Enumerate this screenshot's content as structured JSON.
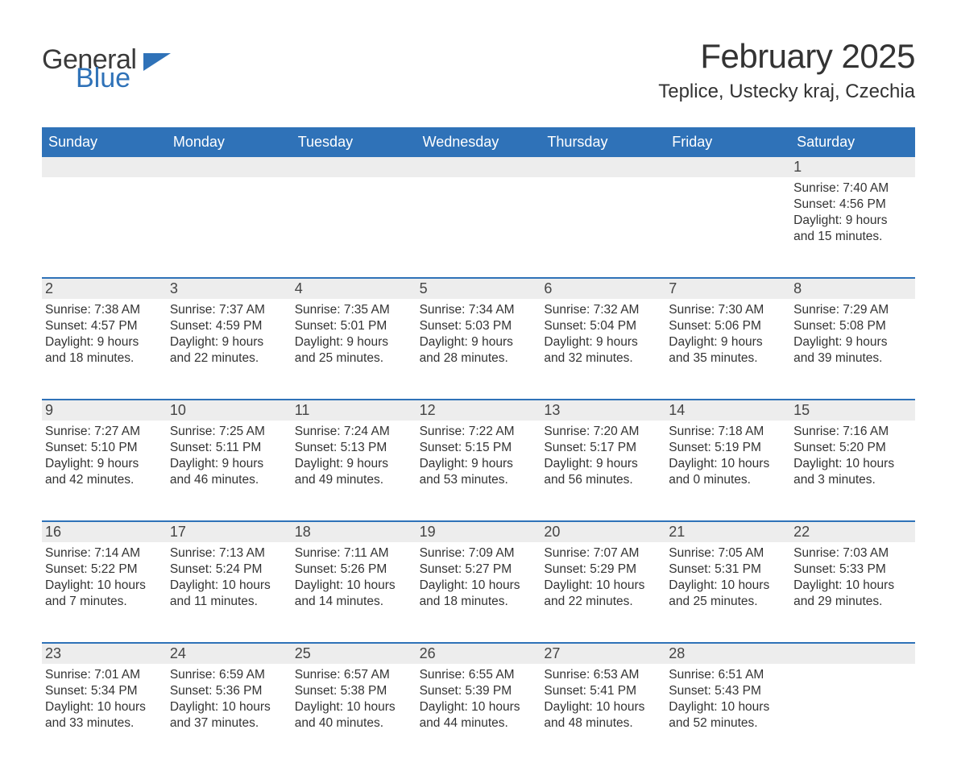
{
  "brand": {
    "word1": "General",
    "word2": "Blue",
    "mark_color": "#2f72b8"
  },
  "title": {
    "month_year": "February 2025",
    "location": "Teplice, Ustecky kraj, Czechia"
  },
  "colors": {
    "header_bg": "#2f72b8",
    "header_text": "#ffffff",
    "row_divider": "#2f72b8",
    "daynum_bg": "#ededed",
    "text": "#333333",
    "background": "#ffffff"
  },
  "typography": {
    "title_fontsize_pt": 32,
    "location_fontsize_pt": 18,
    "dayhead_fontsize_pt": 14,
    "body_fontsize_pt": 12,
    "font_family": "Arial"
  },
  "layout": {
    "columns": 7,
    "week_rows": 5,
    "first_day_column_index": 6
  },
  "day_headers": [
    "Sunday",
    "Monday",
    "Tuesday",
    "Wednesday",
    "Thursday",
    "Friday",
    "Saturday"
  ],
  "weeks": [
    [
      null,
      null,
      null,
      null,
      null,
      null,
      {
        "n": "1",
        "sunrise": "Sunrise: 7:40 AM",
        "sunset": "Sunset: 4:56 PM",
        "day1": "Daylight: 9 hours",
        "day2": "and 15 minutes."
      }
    ],
    [
      {
        "n": "2",
        "sunrise": "Sunrise: 7:38 AM",
        "sunset": "Sunset: 4:57 PM",
        "day1": "Daylight: 9 hours",
        "day2": "and 18 minutes."
      },
      {
        "n": "3",
        "sunrise": "Sunrise: 7:37 AM",
        "sunset": "Sunset: 4:59 PM",
        "day1": "Daylight: 9 hours",
        "day2": "and 22 minutes."
      },
      {
        "n": "4",
        "sunrise": "Sunrise: 7:35 AM",
        "sunset": "Sunset: 5:01 PM",
        "day1": "Daylight: 9 hours",
        "day2": "and 25 minutes."
      },
      {
        "n": "5",
        "sunrise": "Sunrise: 7:34 AM",
        "sunset": "Sunset: 5:03 PM",
        "day1": "Daylight: 9 hours",
        "day2": "and 28 minutes."
      },
      {
        "n": "6",
        "sunrise": "Sunrise: 7:32 AM",
        "sunset": "Sunset: 5:04 PM",
        "day1": "Daylight: 9 hours",
        "day2": "and 32 minutes."
      },
      {
        "n": "7",
        "sunrise": "Sunrise: 7:30 AM",
        "sunset": "Sunset: 5:06 PM",
        "day1": "Daylight: 9 hours",
        "day2": "and 35 minutes."
      },
      {
        "n": "8",
        "sunrise": "Sunrise: 7:29 AM",
        "sunset": "Sunset: 5:08 PM",
        "day1": "Daylight: 9 hours",
        "day2": "and 39 minutes."
      }
    ],
    [
      {
        "n": "9",
        "sunrise": "Sunrise: 7:27 AM",
        "sunset": "Sunset: 5:10 PM",
        "day1": "Daylight: 9 hours",
        "day2": "and 42 minutes."
      },
      {
        "n": "10",
        "sunrise": "Sunrise: 7:25 AM",
        "sunset": "Sunset: 5:11 PM",
        "day1": "Daylight: 9 hours",
        "day2": "and 46 minutes."
      },
      {
        "n": "11",
        "sunrise": "Sunrise: 7:24 AM",
        "sunset": "Sunset: 5:13 PM",
        "day1": "Daylight: 9 hours",
        "day2": "and 49 minutes."
      },
      {
        "n": "12",
        "sunrise": "Sunrise: 7:22 AM",
        "sunset": "Sunset: 5:15 PM",
        "day1": "Daylight: 9 hours",
        "day2": "and 53 minutes."
      },
      {
        "n": "13",
        "sunrise": "Sunrise: 7:20 AM",
        "sunset": "Sunset: 5:17 PM",
        "day1": "Daylight: 9 hours",
        "day2": "and 56 minutes."
      },
      {
        "n": "14",
        "sunrise": "Sunrise: 7:18 AM",
        "sunset": "Sunset: 5:19 PM",
        "day1": "Daylight: 10 hours",
        "day2": "and 0 minutes."
      },
      {
        "n": "15",
        "sunrise": "Sunrise: 7:16 AM",
        "sunset": "Sunset: 5:20 PM",
        "day1": "Daylight: 10 hours",
        "day2": "and 3 minutes."
      }
    ],
    [
      {
        "n": "16",
        "sunrise": "Sunrise: 7:14 AM",
        "sunset": "Sunset: 5:22 PM",
        "day1": "Daylight: 10 hours",
        "day2": "and 7 minutes."
      },
      {
        "n": "17",
        "sunrise": "Sunrise: 7:13 AM",
        "sunset": "Sunset: 5:24 PM",
        "day1": "Daylight: 10 hours",
        "day2": "and 11 minutes."
      },
      {
        "n": "18",
        "sunrise": "Sunrise: 7:11 AM",
        "sunset": "Sunset: 5:26 PM",
        "day1": "Daylight: 10 hours",
        "day2": "and 14 minutes."
      },
      {
        "n": "19",
        "sunrise": "Sunrise: 7:09 AM",
        "sunset": "Sunset: 5:27 PM",
        "day1": "Daylight: 10 hours",
        "day2": "and 18 minutes."
      },
      {
        "n": "20",
        "sunrise": "Sunrise: 7:07 AM",
        "sunset": "Sunset: 5:29 PM",
        "day1": "Daylight: 10 hours",
        "day2": "and 22 minutes."
      },
      {
        "n": "21",
        "sunrise": "Sunrise: 7:05 AM",
        "sunset": "Sunset: 5:31 PM",
        "day1": "Daylight: 10 hours",
        "day2": "and 25 minutes."
      },
      {
        "n": "22",
        "sunrise": "Sunrise: 7:03 AM",
        "sunset": "Sunset: 5:33 PM",
        "day1": "Daylight: 10 hours",
        "day2": "and 29 minutes."
      }
    ],
    [
      {
        "n": "23",
        "sunrise": "Sunrise: 7:01 AM",
        "sunset": "Sunset: 5:34 PM",
        "day1": "Daylight: 10 hours",
        "day2": "and 33 minutes."
      },
      {
        "n": "24",
        "sunrise": "Sunrise: 6:59 AM",
        "sunset": "Sunset: 5:36 PM",
        "day1": "Daylight: 10 hours",
        "day2": "and 37 minutes."
      },
      {
        "n": "25",
        "sunrise": "Sunrise: 6:57 AM",
        "sunset": "Sunset: 5:38 PM",
        "day1": "Daylight: 10 hours",
        "day2": "and 40 minutes."
      },
      {
        "n": "26",
        "sunrise": "Sunrise: 6:55 AM",
        "sunset": "Sunset: 5:39 PM",
        "day1": "Daylight: 10 hours",
        "day2": "and 44 minutes."
      },
      {
        "n": "27",
        "sunrise": "Sunrise: 6:53 AM",
        "sunset": "Sunset: 5:41 PM",
        "day1": "Daylight: 10 hours",
        "day2": "and 48 minutes."
      },
      {
        "n": "28",
        "sunrise": "Sunrise: 6:51 AM",
        "sunset": "Sunset: 5:43 PM",
        "day1": "Daylight: 10 hours",
        "day2": "and 52 minutes."
      },
      null
    ]
  ]
}
